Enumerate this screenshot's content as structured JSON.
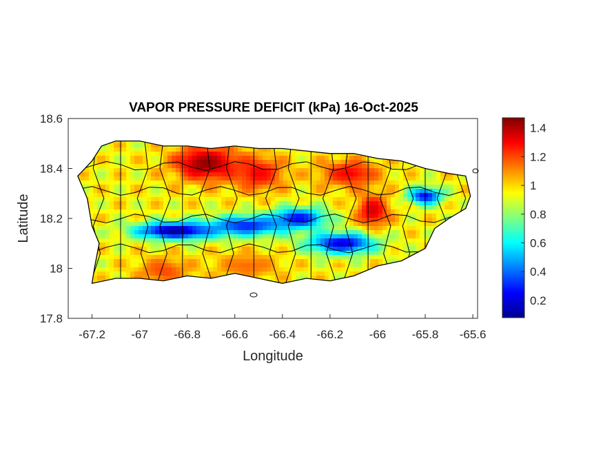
{
  "title": "VAPOR PRESSURE DEFICIT (kPa) 16-Oct-2025",
  "xlabel": "Longitude",
  "ylabel": "Latitude",
  "xlim": [
    -67.3,
    -65.58
  ],
  "ylim": [
    17.8,
    18.6
  ],
  "xticks": [
    {
      "value": -67.2,
      "label": "-67.2"
    },
    {
      "value": -67.0,
      "label": "-67"
    },
    {
      "value": -66.8,
      "label": "-66.8"
    },
    {
      "value": -66.6,
      "label": "-66.6"
    },
    {
      "value": -66.4,
      "label": "-66.4"
    },
    {
      "value": -66.2,
      "label": "-66.2"
    },
    {
      "value": -66.0,
      "label": "-66"
    },
    {
      "value": -65.8,
      "label": "-65.8"
    },
    {
      "value": -65.6,
      "label": "-65.6"
    }
  ],
  "yticks": [
    {
      "value": 17.8,
      "label": "17.8"
    },
    {
      "value": 18.0,
      "label": "18"
    },
    {
      "value": 18.2,
      "label": "18.2"
    },
    {
      "value": 18.4,
      "label": "18.4"
    },
    {
      "value": 18.6,
      "label": "18.6"
    }
  ],
  "colorbar": {
    "range": [
      0.08,
      1.47
    ],
    "ticks": [
      {
        "value": 0.2,
        "label": "0.2"
      },
      {
        "value": 0.4,
        "label": "0.4"
      },
      {
        "value": 0.6,
        "label": "0.6"
      },
      {
        "value": 0.8,
        "label": "0.8"
      },
      {
        "value": 1.0,
        "label": "1"
      },
      {
        "value": 1.2,
        "label": "1.2"
      },
      {
        "value": 1.4,
        "label": "1.4"
      }
    ],
    "colormap": "jet"
  },
  "island_outline": [
    [
      -67.26,
      18.37
    ],
    [
      -67.2,
      18.43
    ],
    [
      -67.16,
      18.49
    ],
    [
      -67.1,
      18.51
    ],
    [
      -67.0,
      18.51
    ],
    [
      -66.9,
      18.49
    ],
    [
      -66.8,
      18.49
    ],
    [
      -66.7,
      18.48
    ],
    [
      -66.6,
      18.49
    ],
    [
      -66.5,
      18.48
    ],
    [
      -66.4,
      18.48
    ],
    [
      -66.3,
      18.47
    ],
    [
      -66.2,
      18.46
    ],
    [
      -66.1,
      18.46
    ],
    [
      -66.0,
      18.44
    ],
    [
      -65.9,
      18.43
    ],
    [
      -65.8,
      18.4
    ],
    [
      -65.7,
      18.38
    ],
    [
      -65.63,
      18.37
    ],
    [
      -65.61,
      18.29
    ],
    [
      -65.63,
      18.24
    ],
    [
      -65.7,
      18.2
    ],
    [
      -65.76,
      18.16
    ],
    [
      -65.8,
      18.08
    ],
    [
      -65.9,
      18.03
    ],
    [
      -66.0,
      18.01
    ],
    [
      -66.1,
      17.97
    ],
    [
      -66.2,
      17.95
    ],
    [
      -66.3,
      17.96
    ],
    [
      -66.4,
      17.94
    ],
    [
      -66.5,
      17.96
    ],
    [
      -66.6,
      17.98
    ],
    [
      -66.7,
      17.96
    ],
    [
      -66.8,
      17.97
    ],
    [
      -66.9,
      17.95
    ],
    [
      -67.0,
      17.96
    ],
    [
      -67.1,
      17.96
    ],
    [
      -67.2,
      17.94
    ],
    [
      -67.19,
      18.0
    ],
    [
      -67.17,
      18.1
    ],
    [
      -67.2,
      18.17
    ],
    [
      -67.22,
      18.28
    ],
    [
      -67.26,
      18.37
    ]
  ],
  "vpd_features": [
    {
      "lon": -66.72,
      "lat": 18.42,
      "value": 1.45,
      "sx": 0.1,
      "sy": 0.05
    },
    {
      "lon": -66.5,
      "lat": 18.38,
      "value": 1.3,
      "sx": 0.08,
      "sy": 0.05
    },
    {
      "lon": -66.12,
      "lat": 18.38,
      "value": 1.3,
      "sx": 0.09,
      "sy": 0.04
    },
    {
      "lon": -66.02,
      "lat": 18.23,
      "value": 1.35,
      "sx": 0.05,
      "sy": 0.05
    },
    {
      "lon": -66.9,
      "lat": 17.99,
      "value": 1.2,
      "sx": 0.08,
      "sy": 0.04
    },
    {
      "lon": -66.55,
      "lat": 18.01,
      "value": 1.15,
      "sx": 0.1,
      "sy": 0.04
    },
    {
      "lon": -66.85,
      "lat": 18.15,
      "value": 0.1,
      "sx": 0.12,
      "sy": 0.025
    },
    {
      "lon": -66.55,
      "lat": 18.17,
      "value": 0.3,
      "sx": 0.12,
      "sy": 0.03
    },
    {
      "lon": -66.33,
      "lat": 18.2,
      "value": 0.25,
      "sx": 0.08,
      "sy": 0.03
    },
    {
      "lon": -66.15,
      "lat": 18.1,
      "value": 0.2,
      "sx": 0.1,
      "sy": 0.03
    },
    {
      "lon": -65.8,
      "lat": 18.29,
      "value": 0.25,
      "sx": 0.05,
      "sy": 0.025
    }
  ],
  "vpd_base": 0.95
}
